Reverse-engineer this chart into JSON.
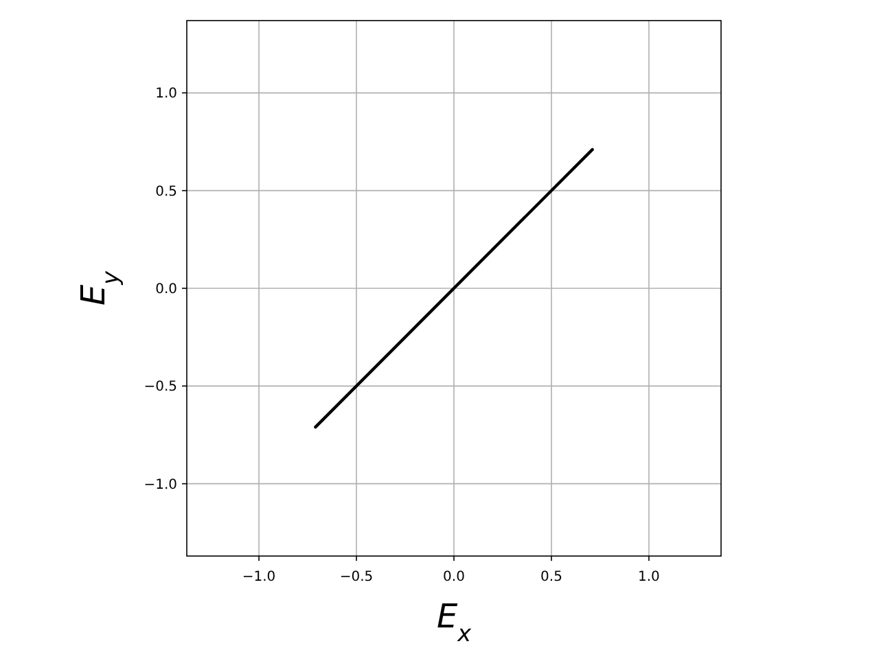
{
  "chart_data": {
    "type": "line",
    "xlabel": "E$_{x}$",
    "ylabel": "E$_{y}$",
    "x": [
      -0.71,
      0.71
    ],
    "series": [
      {
        "color": "#000000",
        "values": [
          -0.71,
          0.71
        ]
      }
    ],
    "xlim": [
      -1.37,
      1.37
    ],
    "ylim": [
      -1.37,
      1.37
    ],
    "xticks": [
      {
        "value": -1,
        "label": "−1.0"
      },
      {
        "value": -0.5,
        "label": "−0.5"
      },
      {
        "value": 0,
        "label": "0.0"
      },
      {
        "value": 0.5,
        "label": "0.5"
      },
      {
        "value": 1,
        "label": "1.0"
      }
    ],
    "yticks": [
      {
        "value": -1,
        "label": "−1.0"
      },
      {
        "value": -0.5,
        "label": "−0.5"
      },
      {
        "value": 0,
        "label": "0.0"
      },
      {
        "value": 0.5,
        "label": "0.5"
      },
      {
        "value": 1,
        "label": "1.0"
      }
    ],
    "grid": true,
    "marker": "none",
    "line_style": "solid"
  }
}
